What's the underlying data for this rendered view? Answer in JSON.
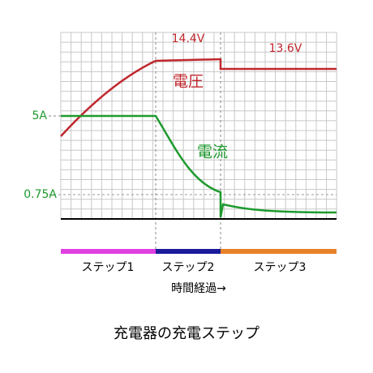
{
  "title": "充電器の充電ステップ",
  "voltage": {
    "label": "電圧",
    "levels": [
      "14.4V",
      "13.6V"
    ]
  },
  "current": {
    "label": "電流",
    "levels": [
      "5A",
      "0.75A"
    ]
  },
  "steps": [
    "ステップ1",
    "ステップ2",
    "ステップ3"
  ],
  "time_label": "時間経過→"
}
